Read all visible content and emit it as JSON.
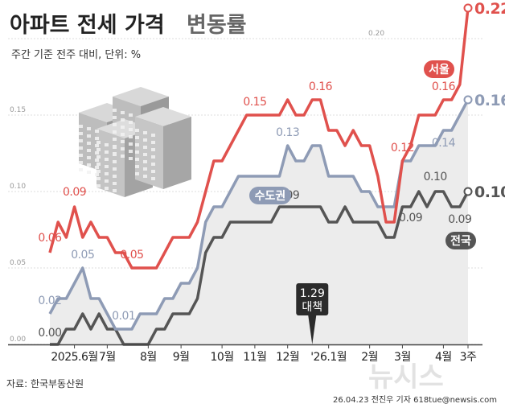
{
  "header": {
    "title": "아파트 전세 가격",
    "title_suffix": "변동률",
    "subtitle": "주간 기준 전주 대비, 단위: %"
  },
  "footer": {
    "source": "자료: 한국부동산원",
    "credit": "26.04.23 전진우 기자 618tue@newsis.com",
    "watermark": "뉴시스"
  },
  "callout": {
    "line1": "1.29",
    "line2": "대책",
    "week_index": 32
  },
  "colors": {
    "seoul": "#e0514d",
    "capital": "#8e9bb5",
    "national": "#555555",
    "area_fill": "#ececec"
  },
  "illustration": "apartment-buildings-icon",
  "chart_data": {
    "type": "line",
    "title": "아파트 전세 가격 변동률",
    "xlabel": "",
    "ylabel": "",
    "ylim": [
      0.0,
      0.22
    ],
    "yticks": [
      {
        "value": 0.0,
        "label": "0.00"
      },
      {
        "value": 0.05,
        "label": "0.05"
      },
      {
        "value": 0.1,
        "label": "0.10"
      },
      {
        "value": 0.15,
        "label": "0.15"
      },
      {
        "value": 0.2,
        "label": "0.20"
      }
    ],
    "grid": true,
    "x_ticks": [
      {
        "index": 3,
        "label": "2025.6월"
      },
      {
        "index": 7,
        "label": "7월"
      },
      {
        "index": 12,
        "label": "8월"
      },
      {
        "index": 16,
        "label": "9월"
      },
      {
        "index": 21,
        "label": "10월"
      },
      {
        "index": 25,
        "label": "11월"
      },
      {
        "index": 29,
        "label": "12월"
      },
      {
        "index": 34,
        "label": "'26.1월"
      },
      {
        "index": 39,
        "label": "2월"
      },
      {
        "index": 43,
        "label": "3월"
      },
      {
        "index": 48,
        "label": "4월"
      },
      {
        "index": 51,
        "label": "3주"
      }
    ],
    "series": [
      {
        "name": "서울",
        "key": "seoul",
        "values": [
          0.06,
          0.08,
          0.07,
          0.09,
          0.07,
          0.08,
          0.07,
          0.07,
          0.06,
          0.06,
          0.05,
          0.05,
          0.05,
          0.05,
          0.06,
          0.07,
          0.07,
          0.07,
          0.08,
          0.1,
          0.12,
          0.12,
          0.13,
          0.14,
          0.15,
          0.15,
          0.15,
          0.15,
          0.15,
          0.16,
          0.15,
          0.15,
          0.16,
          0.16,
          0.14,
          0.14,
          0.13,
          0.14,
          0.13,
          0.13,
          0.11,
          0.08,
          0.08,
          0.12,
          0.13,
          0.15,
          0.15,
          0.15,
          0.16,
          0.16,
          0.17,
          0.22
        ],
        "labels": [
          {
            "index": 0,
            "text": "0.06",
            "dy": -14
          },
          {
            "index": 3,
            "text": "0.09",
            "dy": -14
          },
          {
            "index": 10,
            "text": "0.05",
            "dy": -12
          },
          {
            "index": 25,
            "text": "0.15",
            "dy": -12
          },
          {
            "index": 33,
            "text": "0.16",
            "dy": -12
          },
          {
            "index": 43,
            "text": "0.12",
            "dy": -12
          },
          {
            "index": 48,
            "text": "0.16",
            "dy": -12
          }
        ],
        "end_label": "0.22",
        "badge": "서울"
      },
      {
        "name": "수도권",
        "key": "capital",
        "values": [
          0.02,
          0.03,
          0.03,
          0.04,
          0.05,
          0.03,
          0.03,
          0.02,
          0.01,
          0.01,
          0.01,
          0.02,
          0.02,
          0.02,
          0.03,
          0.03,
          0.04,
          0.04,
          0.05,
          0.08,
          0.09,
          0.09,
          0.1,
          0.11,
          0.11,
          0.11,
          0.11,
          0.11,
          0.11,
          0.13,
          0.12,
          0.12,
          0.13,
          0.13,
          0.11,
          0.11,
          0.11,
          0.11,
          0.1,
          0.1,
          0.09,
          0.09,
          0.09,
          0.12,
          0.12,
          0.13,
          0.13,
          0.13,
          0.14,
          0.14,
          0.15,
          0.16
        ],
        "labels": [
          {
            "index": 0,
            "text": "0.02",
            "dy": -12
          },
          {
            "index": 4,
            "text": "0.05",
            "dy": -12
          },
          {
            "index": 9,
            "text": "0.01",
            "dy": -12
          },
          {
            "index": 29,
            "text": "0.13",
            "dy": -12
          },
          {
            "index": 48,
            "text": "0.14",
            "dy": 20
          }
        ],
        "end_label": "0.16",
        "badge": "수도권"
      },
      {
        "name": "전국",
        "key": "national",
        "values": [
          0.0,
          0.0,
          0.01,
          0.01,
          0.02,
          0.01,
          0.02,
          0.01,
          0.01,
          0.0,
          0.0,
          0.0,
          0.0,
          0.01,
          0.01,
          0.02,
          0.02,
          0.02,
          0.03,
          0.06,
          0.07,
          0.07,
          0.08,
          0.08,
          0.08,
          0.08,
          0.08,
          0.08,
          0.09,
          0.09,
          0.09,
          0.09,
          0.09,
          0.09,
          0.08,
          0.08,
          0.09,
          0.08,
          0.08,
          0.08,
          0.08,
          0.07,
          0.07,
          0.09,
          0.09,
          0.1,
          0.09,
          0.1,
          0.1,
          0.09,
          0.09,
          0.1
        ],
        "labels": [
          {
            "index": 0,
            "text": "0.00",
            "dy": -10
          },
          {
            "index": 29,
            "text": "0.09",
            "dy": -10
          },
          {
            "index": 44,
            "text": "0.09",
            "dy": 18
          },
          {
            "index": 47,
            "text": "0.10",
            "dy": -14
          },
          {
            "index": 50,
            "text": "0.09",
            "dy": 20
          }
        ],
        "end_label": "0.10",
        "badge": "전국"
      }
    ]
  }
}
